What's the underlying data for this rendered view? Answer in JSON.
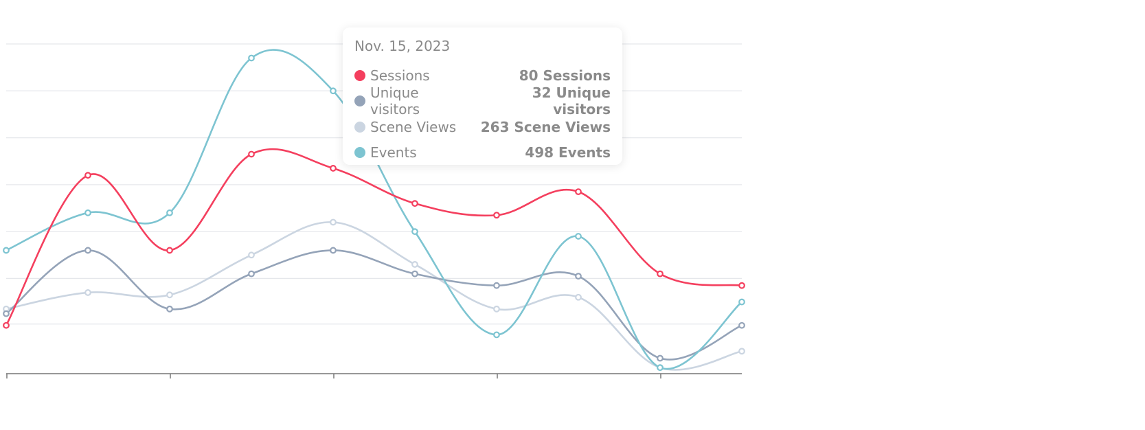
{
  "chart_data": {
    "type": "line",
    "title": "",
    "xlabel": "",
    "ylabel": "",
    "grid": true,
    "x_points": 10,
    "series": [
      {
        "name": "Sessions",
        "color": "#f43f5e",
        "values": [
          1.0,
          4.2,
          2.6,
          4.65,
          4.35,
          3.6,
          3.35,
          3.85,
          2.1,
          1.85
        ]
      },
      {
        "name": "Unique visitors",
        "color": "#94a3b8",
        "values": [
          1.25,
          2.6,
          1.35,
          2.1,
          2.6,
          2.1,
          1.85,
          2.05,
          0.3,
          1.0
        ]
      },
      {
        "name": "Scene Views",
        "color": "#cbd5e1",
        "values": [
          1.35,
          1.7,
          1.65,
          2.5,
          3.2,
          2.3,
          1.35,
          1.6,
          0.1,
          0.45
        ]
      },
      {
        "name": "Events",
        "color": "#7dc4d1",
        "values": [
          2.6,
          3.4,
          3.4,
          6.7,
          6.0,
          3.0,
          0.8,
          2.9,
          0.1,
          1.5
        ]
      }
    ],
    "ylim": [
      0,
      7
    ],
    "tooltip": {
      "date": "Nov. 15, 2023",
      "rows": [
        {
          "label": "Sessions",
          "value": "80 Sessions",
          "color": "#f43f5e"
        },
        {
          "label": "Unique visitors",
          "value": "32 Unique visitors",
          "color": "#94a3b8"
        },
        {
          "label": "Scene Views",
          "value": "263 Scene Views",
          "color": "#cbd5e1"
        },
        {
          "label": "Events",
          "value": "498 Events",
          "color": "#7dc4d1"
        }
      ]
    },
    "grid_color": "#e5e7eb",
    "axis_color": "#777777"
  }
}
